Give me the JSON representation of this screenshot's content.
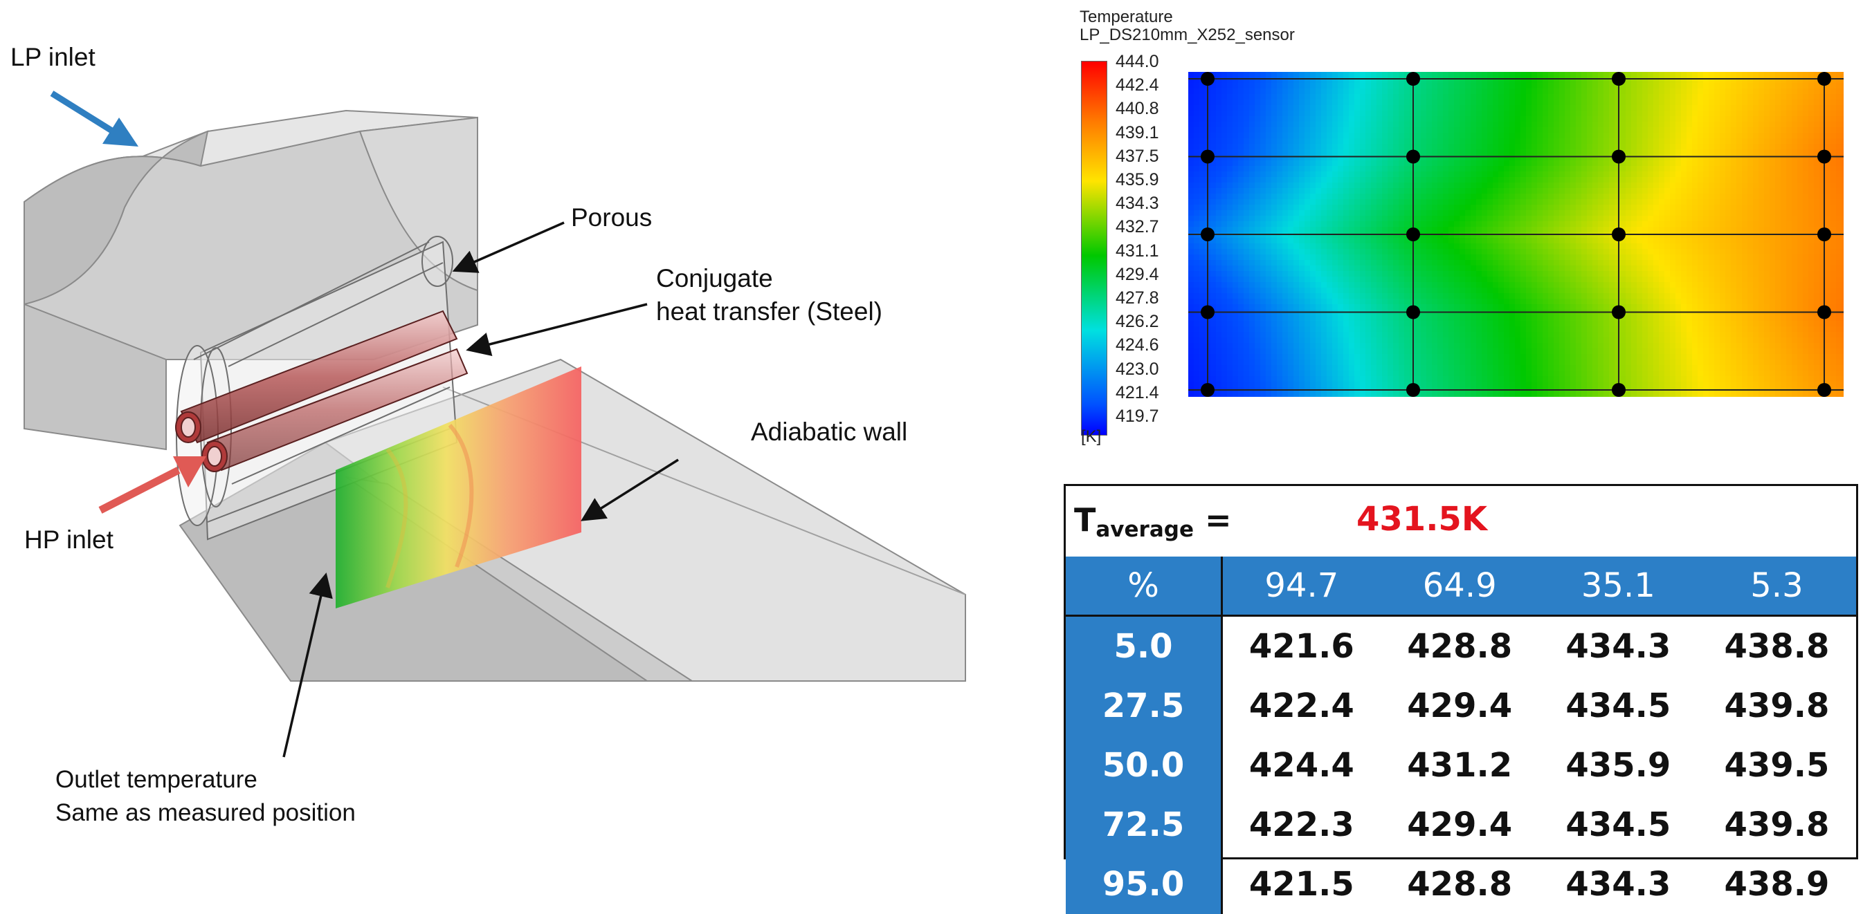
{
  "geometry": {
    "labels": {
      "lp_inlet": "LP inlet",
      "porous": "Porous",
      "conjugate_line1": "Conjugate",
      "conjugate_line2": "heat transfer (Steel)",
      "adiabatic_wall": "Adiabatic wall",
      "hp_inlet": "HP inlet",
      "outlet_line1": "Outlet temperature",
      "outlet_line2": "Same as measured position"
    },
    "colors": {
      "lp_arrow": "#2f7fc1",
      "hp_arrow": "#e05a55",
      "body": "#d9d9d9"
    }
  },
  "legend": {
    "title": "Temperature",
    "subtitle": "LP_DS210mm_X252_sensor",
    "unit": "[K]",
    "ticks": [
      "444.0",
      "442.4",
      "440.8",
      "439.1",
      "437.5",
      "435.9",
      "434.3",
      "432.7",
      "431.1",
      "429.4",
      "427.8",
      "426.2",
      "424.6",
      "423.0",
      "421.4",
      "419.7"
    ]
  },
  "chart_data": {
    "type": "heatmap",
    "columns_percent": [
      94.7,
      64.9,
      35.1,
      5.3
    ],
    "rows_percent": [
      5.0,
      27.5,
      50.0,
      72.5,
      95.0
    ],
    "values_K": [
      [
        421.6,
        428.8,
        434.3,
        438.8
      ],
      [
        422.4,
        429.4,
        434.5,
        439.8
      ],
      [
        424.4,
        431.2,
        435.9,
        439.5
      ],
      [
        422.3,
        429.4,
        434.5,
        439.8
      ],
      [
        421.5,
        428.8,
        434.3,
        438.9
      ]
    ],
    "range": [
      419.7,
      444.0
    ]
  },
  "table": {
    "tavg_label": "T",
    "tavg_sub": "average",
    "tavg_eq": " =",
    "tavg_value": "431.5K",
    "corner": "%",
    "columns": [
      "94.7",
      "64.9",
      "35.1",
      "5.3"
    ],
    "rows": [
      {
        "label": "5.0",
        "cells": [
          "421.6",
          "428.8",
          "434.3",
          "438.8"
        ]
      },
      {
        "label": "27.5",
        "cells": [
          "422.4",
          "429.4",
          "434.5",
          "439.8"
        ]
      },
      {
        "label": "50.0",
        "cells": [
          "424.4",
          "431.2",
          "435.9",
          "439.5"
        ]
      },
      {
        "label": "72.5",
        "cells": [
          "422.3",
          "429.4",
          "434.5",
          "439.8"
        ]
      },
      {
        "label": "95.0",
        "cells": [
          "421.5",
          "428.8",
          "434.3",
          "438.9"
        ]
      }
    ],
    "colors": {
      "header": "#2c7fc7",
      "highlight": "#e4141e"
    }
  }
}
